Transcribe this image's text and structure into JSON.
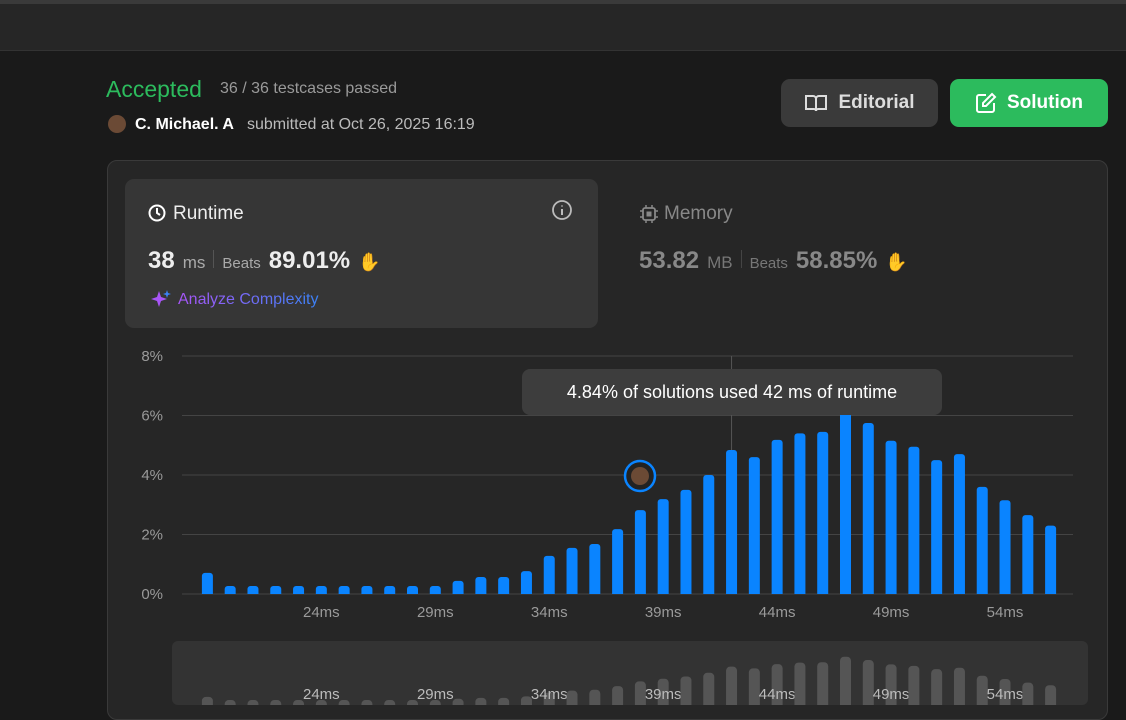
{
  "header": {
    "status": "Accepted",
    "testcases": "36 / 36 testcases passed",
    "user": "C. Michael. A",
    "submitted": "submitted at Oct 26, 2025 16:19"
  },
  "buttons": {
    "editorial": "Editorial",
    "solution": "Solution"
  },
  "runtime": {
    "title": "Runtime",
    "value": "38",
    "unit": "ms",
    "beats_label": "Beats",
    "beats": "89.01%",
    "analyze": "Analyze Complexity"
  },
  "memory": {
    "title": "Memory",
    "value": "53.82",
    "unit": "MB",
    "beats_label": "Beats",
    "beats": "58.85%"
  },
  "chart_data": {
    "type": "bar",
    "categories": [
      null,
      null,
      null,
      null,
      null,
      "24ms",
      null,
      null,
      null,
      null,
      "29ms",
      null,
      null,
      null,
      null,
      "34ms",
      null,
      null,
      null,
      null,
      "39ms",
      null,
      null,
      null,
      null,
      "44ms",
      null,
      null,
      null,
      null,
      "49ms",
      null,
      null,
      null,
      null,
      "54ms",
      null,
      null
    ],
    "values": [
      0.71,
      0.27,
      0.27,
      0.27,
      0.27,
      0.27,
      0.27,
      0.27,
      0.27,
      0.27,
      0.27,
      0.44,
      0.57,
      0.57,
      0.77,
      1.28,
      1.55,
      1.68,
      2.18,
      2.82,
      3.19,
      3.5,
      4.0,
      4.84,
      4.6,
      5.18,
      5.4,
      5.45,
      6.2,
      5.75,
      5.15,
      4.95,
      4.5,
      4.7,
      3.6,
      3.15,
      2.65,
      2.3
    ],
    "color": "#0a84ff",
    "ylim": [
      0,
      8
    ],
    "yticks": [
      {
        "value": 0,
        "label": "0%"
      },
      {
        "value": 2,
        "label": "2%"
      },
      {
        "value": 4,
        "label": "4%"
      },
      {
        "value": 6,
        "label": "6%"
      },
      {
        "value": 8,
        "label": "8%"
      }
    ],
    "grid": true,
    "annotation": "4.84% of solutions used 42 ms of runtime"
  }
}
